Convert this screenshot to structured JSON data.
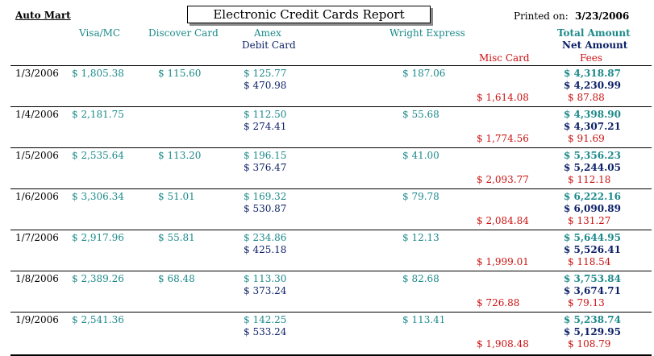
{
  "header": {
    "company": "Auto Mart",
    "title": "Electronic Credit Cards Report",
    "printed_label": "Printed on:",
    "printed_date": "3/23/2006"
  },
  "columns": {
    "visa": "Visa/MC",
    "discover": "Discover Card",
    "amex": "Amex",
    "debit": "Debit Card",
    "wright": "Wright Express",
    "misc": "Misc Card",
    "total": "Total Amount",
    "net": "Net Amount",
    "fees": "Fees"
  },
  "rows": [
    {
      "date": "1/3/2006",
      "visa": "$ 1,805.38",
      "discover": "$ 115.60",
      "amex": "$ 125.77",
      "debit": "$ 470.98",
      "wright": "$ 187.06",
      "misc": "$ 1,614.08",
      "total": "$ 4,318.87",
      "net": "$ 4,230.99",
      "fees": "$ 87.88"
    },
    {
      "date": "1/4/2006",
      "visa": "$ 2,181.75",
      "discover": "",
      "amex": "$ 112.50",
      "debit": "$ 274.41",
      "wright": "$ 55.68",
      "misc": "$ 1,774.56",
      "total": "$ 4,398.90",
      "net": "$ 4,307.21",
      "fees": "$ 91.69"
    },
    {
      "date": "1/5/2006",
      "visa": "$ 2,535.64",
      "discover": "$ 113.20",
      "amex": "$ 196.15",
      "debit": "$ 376.47",
      "wright": "$ 41.00",
      "misc": "$ 2,093.77",
      "total": "$ 5,356.23",
      "net": "$ 5,244.05",
      "fees": "$ 112.18"
    },
    {
      "date": "1/6/2006",
      "visa": "$ 3,306.34",
      "discover": "$ 51.01",
      "amex": "$ 169.32",
      "debit": "$ 530.87",
      "wright": "$ 79.78",
      "misc": "$ 2,084.84",
      "total": "$ 6,222.16",
      "net": "$ 6,090.89",
      "fees": "$ 131.27"
    },
    {
      "date": "1/7/2006",
      "visa": "$ 2,917.96",
      "discover": "$ 55.81",
      "amex": "$ 234.86",
      "debit": "$ 425.18",
      "wright": "$ 12.13",
      "misc": "$ 1,999.01",
      "total": "$ 5,644.95",
      "net": "$ 5,526.41",
      "fees": "$ 118.54"
    },
    {
      "date": "1/8/2006",
      "visa": "$ 2,389.26",
      "discover": "$ 68.48",
      "amex": "$ 113.30",
      "debit": "$ 373.24",
      "wright": "$ 82.68",
      "misc": "$ 726.88",
      "total": "$ 3,753.84",
      "net": "$ 3,674.71",
      "fees": "$ 79.13"
    },
    {
      "date": "1/9/2006",
      "visa": "$ 2,541.36",
      "discover": "",
      "amex": "$ 142.25",
      "debit": "$ 533.24",
      "wright": "$ 113.41",
      "misc": "$ 1,908.48",
      "total": "$ 5,238.74",
      "net": "$ 5,129.95",
      "fees": "$ 108.79"
    }
  ]
}
